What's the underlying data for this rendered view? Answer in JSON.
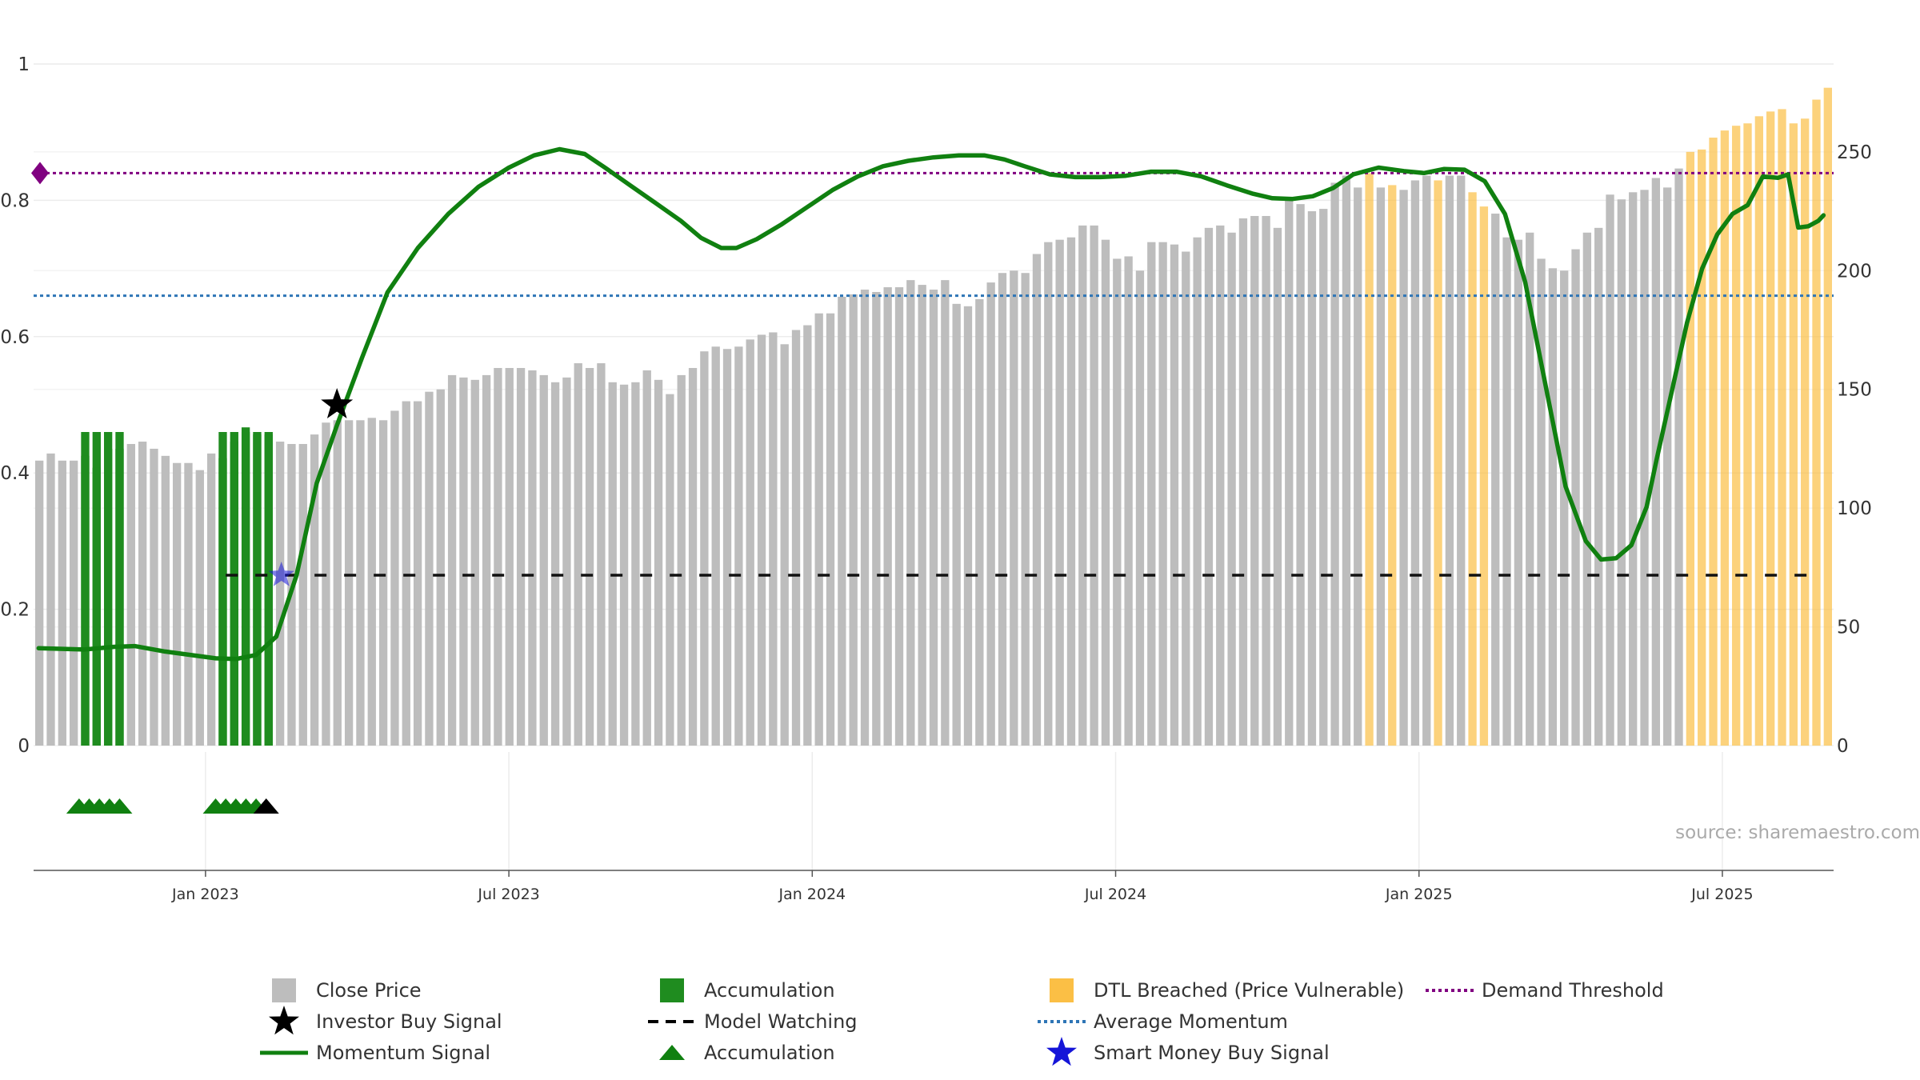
{
  "chart_data": {
    "type": "bar",
    "source": "source: sharemaestro.com",
    "left_axis": {
      "min": 0,
      "max": 1,
      "ticks": [
        "0",
        "0.2",
        "0.4",
        "0.6",
        "0.8",
        "1"
      ],
      "tick_values": [
        0,
        0.2,
        0.4,
        0.6,
        0.8,
        1
      ]
    },
    "right_axis": {
      "min": 0,
      "max": 287,
      "ticks": [
        "0",
        "50",
        "100",
        "150",
        "200",
        "250"
      ],
      "tick_values": [
        0,
        50,
        100,
        150,
        200,
        250
      ]
    },
    "x_axis": {
      "start_month": 0,
      "end_month": 35.6,
      "ticks": [
        "Jan 2023",
        "Jul 2023",
        "Jan 2024",
        "Jul 2024",
        "Jan 2025",
        "Jul 2025"
      ],
      "tick_months": [
        3.4,
        9.4,
        15.4,
        21.4,
        27.4,
        33.4
      ]
    },
    "legend": [
      {
        "label": "Close Price",
        "symbol": "square",
        "color": "#bdbdbd"
      },
      {
        "label": "Investor Buy Signal",
        "symbol": "star",
        "color": "#000000"
      },
      {
        "label": "Momentum Signal",
        "symbol": "line",
        "color": "#108010"
      },
      {
        "label": "Accumulation",
        "symbol": "square",
        "color": "#1f8c1f"
      },
      {
        "label": "Model Watching",
        "symbol": "dash",
        "color": "#000000"
      },
      {
        "label": "Accumulation",
        "symbol": "triangle",
        "color": "#108010"
      },
      {
        "label": "DTL Breached (Price Vulnerable)",
        "symbol": "square",
        "color": "#fbbf45"
      },
      {
        "label": "Average Momentum",
        "symbol": "dot",
        "color": "#2e75b6"
      },
      {
        "label": "Smart Money Buy Signal",
        "symbol": "star",
        "color": "#1515d8"
      },
      {
        "label": "Demand Threshold",
        "symbol": "dot",
        "color": "#800080"
      }
    ],
    "colors": {
      "price": "#bdbdbd",
      "accumulation": "#1f8c1f",
      "dtl": "#fbbf45",
      "momentum": "#108010",
      "average": "#2e75b6",
      "threshold": "#800080",
      "smart": "#1515d8",
      "grid": "#ececec"
    },
    "demand_threshold": 0.84,
    "average_momentum": 0.66,
    "model_watching": {
      "value": 0.25,
      "start_month": 3.8,
      "end_month": 35.3
    },
    "close_price": [
      120,
      123,
      120,
      120,
      122,
      117,
      125,
      125,
      127,
      128,
      125,
      122,
      119,
      119,
      116,
      123,
      121,
      128,
      134,
      131,
      131,
      128,
      127,
      127,
      131,
      136,
      137,
      137,
      137,
      138,
      137,
      141,
      145,
      145,
      149,
      150,
      156,
      155,
      154,
      156,
      159,
      159,
      159,
      158,
      156,
      153,
      155,
      161,
      159,
      161,
      153,
      152,
      153,
      158,
      154,
      148,
      156,
      159,
      166,
      168,
      167,
      168,
      171,
      173,
      174,
      169,
      175,
      177,
      182,
      182,
      189,
      190,
      192,
      191,
      193,
      193,
      196,
      194,
      192,
      196,
      186,
      185,
      188,
      195,
      199,
      200,
      199,
      207,
      212,
      213,
      214,
      219,
      219,
      213,
      205,
      206,
      200,
      212,
      212,
      211,
      208,
      214,
      218,
      219,
      216,
      222,
      223,
      223,
      218,
      230,
      228,
      225,
      226,
      237,
      240,
      235,
      241,
      235,
      236,
      234,
      238,
      240,
      238,
      240,
      240,
      233,
      227,
      224,
      214,
      213,
      216,
      205,
      201,
      200,
      209,
      216,
      218,
      232,
      230,
      233,
      234,
      239,
      235,
      243,
      250,
      251,
      256,
      259,
      261,
      262,
      265,
      267,
      268,
      262,
      264,
      272,
      277
    ],
    "accumulation_bars": [
      4,
      5,
      6,
      7,
      16,
      17,
      18,
      19,
      20
    ],
    "dtl_bars": [
      116,
      118,
      122,
      125,
      126,
      144,
      145,
      146,
      147,
      148,
      149,
      150,
      151,
      152,
      153,
      154,
      155,
      156,
      157,
      158
    ],
    "momentum": {
      "months": [
        0.1,
        1.0,
        1.6,
        2.0,
        2.6,
        3.2,
        3.6,
        4.0,
        4.4,
        4.8,
        5.2,
        5.6,
        6.0,
        6.5,
        7.0,
        7.6,
        8.2,
        8.8,
        9.4,
        9.9,
        10.4,
        10.9,
        11.3,
        11.8,
        12.3,
        12.8,
        13.2,
        13.6,
        13.9,
        14.3,
        14.8,
        15.3,
        15.8,
        16.3,
        16.8,
        17.3,
        17.8,
        18.3,
        18.8,
        19.2,
        19.6,
        20.1,
        20.6,
        21.1,
        21.6,
        22.1,
        22.6,
        23.1,
        23.6,
        24.1,
        24.5,
        24.9,
        25.3,
        25.7,
        26.1,
        26.6,
        27.1,
        27.5,
        27.9,
        28.3,
        28.7,
        29.1,
        29.5,
        29.9,
        30.3,
        30.7,
        31.0,
        31.3,
        31.6,
        31.9,
        32.1,
        32.4,
        32.7,
        33.0,
        33.3,
        33.6,
        33.9,
        34.2,
        34.5,
        34.7,
        34.9,
        35.1,
        35.3,
        35.4
      ],
      "values": [
        0.143,
        0.141,
        0.145,
        0.146,
        0.138,
        0.132,
        0.128,
        0.127,
        0.133,
        0.16,
        0.25,
        0.385,
        0.47,
        0.57,
        0.665,
        0.73,
        0.78,
        0.82,
        0.848,
        0.866,
        0.875,
        0.868,
        0.848,
        0.822,
        0.796,
        0.77,
        0.745,
        0.73,
        0.73,
        0.743,
        0.765,
        0.79,
        0.815,
        0.835,
        0.85,
        0.858,
        0.863,
        0.866,
        0.866,
        0.86,
        0.85,
        0.838,
        0.834,
        0.834,
        0.836,
        0.842,
        0.842,
        0.835,
        0.822,
        0.81,
        0.803,
        0.802,
        0.806,
        0.818,
        0.838,
        0.848,
        0.843,
        0.84,
        0.846,
        0.845,
        0.828,
        0.78,
        0.68,
        0.53,
        0.38,
        0.3,
        0.273,
        0.275,
        0.294,
        0.35,
        0.42,
        0.52,
        0.62,
        0.7,
        0.75,
        0.78,
        0.793,
        0.835,
        0.833,
        0.838,
        0.76,
        0.762,
        0.77,
        0.778
      ]
    },
    "investor_buy": {
      "month": 6.0,
      "value": 0.5
    },
    "smart_money_buy": {
      "month": 4.9,
      "value": 0.25
    },
    "accumulation_markers": [
      0.9,
      1.1,
      1.3,
      1.5,
      1.7,
      3.6,
      3.8,
      4.0,
      4.2,
      4.4
    ],
    "watching_marker": 4.6
  }
}
